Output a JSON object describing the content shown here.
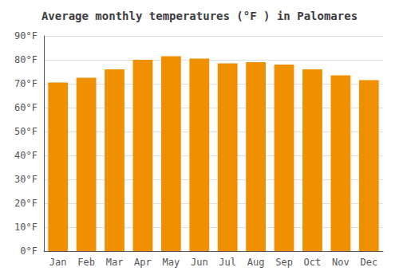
{
  "chart_data": {
    "type": "bar",
    "title": "Average monthly temperatures (°F ) in Palomares",
    "categories": [
      "Jan",
      "Feb",
      "Mar",
      "Apr",
      "May",
      "Jun",
      "Jul",
      "Aug",
      "Sep",
      "Oct",
      "Nov",
      "Dec"
    ],
    "values": [
      70.5,
      72.5,
      76,
      80,
      81.5,
      80.5,
      78.5,
      79,
      78,
      76,
      73.5,
      71.5
    ],
    "color": "#F09000",
    "ylim": [
      0,
      90
    ],
    "yticks": [
      {
        "value": 0,
        "label": "0°F"
      },
      {
        "value": 10,
        "label": "10°F"
      },
      {
        "value": 20,
        "label": "20°F"
      },
      {
        "value": 30,
        "label": "30°F"
      },
      {
        "value": 40,
        "label": "40°F"
      },
      {
        "value": 50,
        "label": "50°F"
      },
      {
        "value": 60,
        "label": "60°F"
      },
      {
        "value": 70,
        "label": "70°F"
      },
      {
        "value": 80,
        "label": "80°F"
      },
      {
        "value": 90,
        "label": "90°F"
      }
    ],
    "grid": true
  }
}
